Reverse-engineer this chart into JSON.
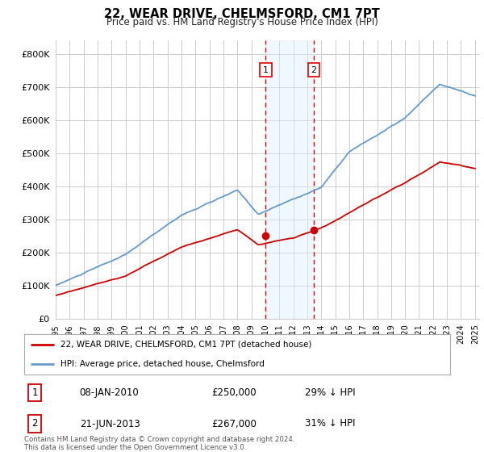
{
  "title": "22, WEAR DRIVE, CHELMSFORD, CM1 7PT",
  "subtitle": "Price paid vs. HM Land Registry's House Price Index (HPI)",
  "ylabel_ticks": [
    "£0",
    "£100K",
    "£200K",
    "£300K",
    "£400K",
    "£500K",
    "£600K",
    "£700K",
    "£800K"
  ],
  "ytick_values": [
    0,
    100000,
    200000,
    300000,
    400000,
    500000,
    600000,
    700000,
    800000
  ],
  "ylim": [
    0,
    840000
  ],
  "xlim_start": 1995.0,
  "xlim_end": 2025.3,
  "background_color": "#ffffff",
  "plot_bg_color": "#ffffff",
  "grid_color": "#cccccc",
  "purchase1_x": 2010.03,
  "purchase1_y": 250000,
  "purchase1_label": "1",
  "purchase2_x": 2013.47,
  "purchase2_y": 267000,
  "purchase2_label": "2",
  "vline_color": "#dd0000",
  "vshade_color": "#ddeeff",
  "vshade_alpha": 0.45,
  "red_line_color": "#cc0000",
  "blue_line_color": "#6699cc",
  "legend_entry1": "22, WEAR DRIVE, CHELMSFORD, CM1 7PT (detached house)",
  "legend_entry2": "HPI: Average price, detached house, Chelmsford",
  "table_row1_num": "1",
  "table_row1_date": "08-JAN-2010",
  "table_row1_price": "£250,000",
  "table_row1_hpi": "29% ↓ HPI",
  "table_row2_num": "2",
  "table_row2_date": "21-JUN-2013",
  "table_row2_price": "£267,000",
  "table_row2_hpi": "31% ↓ HPI",
  "footer": "Contains HM Land Registry data © Crown copyright and database right 2024.\nThis data is licensed under the Open Government Licence v3.0.",
  "xtick_years": [
    1995,
    1996,
    1997,
    1998,
    1999,
    2000,
    2001,
    2002,
    2003,
    2004,
    2005,
    2006,
    2007,
    2008,
    2009,
    2010,
    2011,
    2012,
    2013,
    2014,
    2015,
    2016,
    2017,
    2018,
    2019,
    2020,
    2021,
    2022,
    2023,
    2024,
    2025
  ]
}
